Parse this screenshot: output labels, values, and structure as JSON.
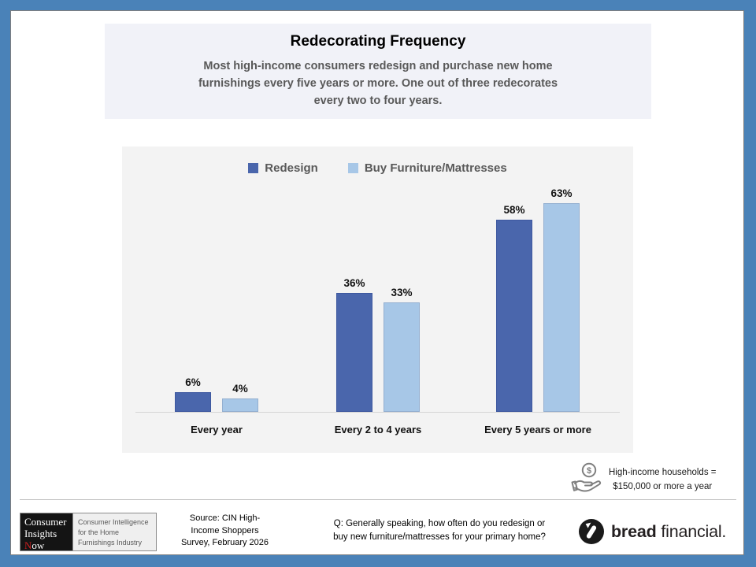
{
  "header": {
    "title": "Redecorating Frequency",
    "subtitle_lines": [
      "Most high-income consumers redesign and purchase new home",
      "furnishings every five years or more. One out of three redecorates",
      "every two to four years."
    ]
  },
  "chart_data": {
    "type": "bar",
    "categories": [
      "Every year",
      "Every 2 to 4 years",
      "Every 5 years or more"
    ],
    "series": [
      {
        "name": "Redesign",
        "color": "#4A66AC",
        "edge": "#3E58A0",
        "values": [
          6,
          36,
          58
        ]
      },
      {
        "name": "Buy Furniture/Mattresses",
        "color": "#A7C7E7",
        "edge": "#93AFD0",
        "values": [
          4,
          33,
          63
        ]
      }
    ],
    "value_suffix": "%",
    "ylim": [
      0,
      70
    ],
    "legend_position": "top-center",
    "grid": false,
    "plot_background": "#F3F3F3",
    "baseline_color": "#D4D4D4"
  },
  "note": {
    "icon": "hand-coin-icon",
    "lines": [
      "High-income households =",
      "$150,000 or more a year"
    ]
  },
  "footer": {
    "cin_logo": {
      "line1": "Consumer",
      "line2": "Insights",
      "line3_initial": "N",
      "line3_rest": "ow",
      "tagline_lines": [
        "Consumer Intelligence",
        "for the Home",
        "Furnishings Industry"
      ]
    },
    "source_lines": [
      "Source: CIN High-",
      "Income Shoppers",
      "Survey, February 2026"
    ],
    "question_lines": [
      "Q: Generally speaking, how often do you redesign or",
      "buy new furniture/mattresses for your primary home?"
    ],
    "brand": {
      "word_bold": "bread",
      "word_regular": "financial."
    }
  },
  "colors": {
    "slide_border": "#4A82B8",
    "header_bg": "#F1F2F8",
    "subtitle_text": "#595959",
    "legend_text": "#595959"
  }
}
